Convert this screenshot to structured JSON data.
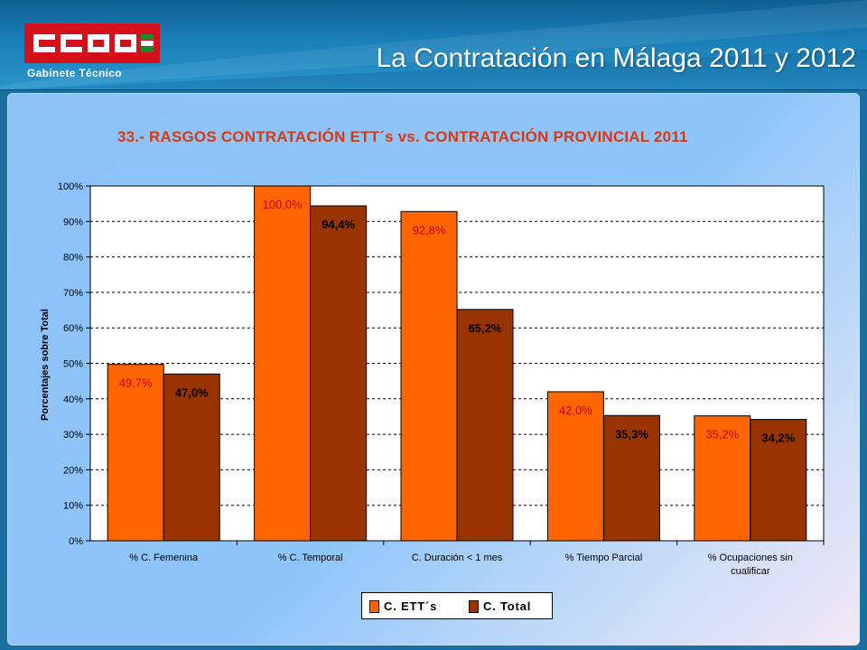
{
  "header": {
    "logo_text": "CCOO",
    "logo_subtitle": "Gabinete   Técnico",
    "title": "La Contratación en Málaga 2011 y 2012"
  },
  "colors": {
    "series_1": "#ff6600",
    "series_2": "#993300",
    "label_1": "#cc0000",
    "label_2": "#000000",
    "title": "#d63a12"
  },
  "chart_data": {
    "type": "bar",
    "title": "33.- RASGOS CONTRATACIÓN ETT´s vs. CONTRATACIÓN PROVINCIAL 2011",
    "xlabel": "",
    "ylabel": "Porcentajes sobre Total",
    "ylim": [
      0,
      100
    ],
    "yticks": [
      "0%",
      "10%",
      "20%",
      "30%",
      "40%",
      "50%",
      "60%",
      "70%",
      "80%",
      "90%",
      "100%"
    ],
    "grid": true,
    "legend_position": "bottom",
    "categories": [
      [
        "% C. Femenina"
      ],
      [
        "% C. Temporal"
      ],
      [
        "C. Duración < 1 mes"
      ],
      [
        "% Tiempo Parcial"
      ],
      [
        "% Ocupaciones sin",
        "cualificar"
      ]
    ],
    "series": [
      {
        "name": "C. ETT´s",
        "values": [
          49.7,
          100.0,
          92.8,
          42.0,
          35.2
        ],
        "labels": [
          "49,7%",
          "100,0%",
          "92,8%",
          "42,0%",
          "35,2%"
        ]
      },
      {
        "name": "C. Total",
        "values": [
          47.0,
          94.4,
          65.2,
          35.3,
          34.2
        ],
        "labels": [
          "47,0%",
          "94,4%",
          "65,2%",
          "35,3%",
          "34,2%"
        ]
      }
    ]
  }
}
